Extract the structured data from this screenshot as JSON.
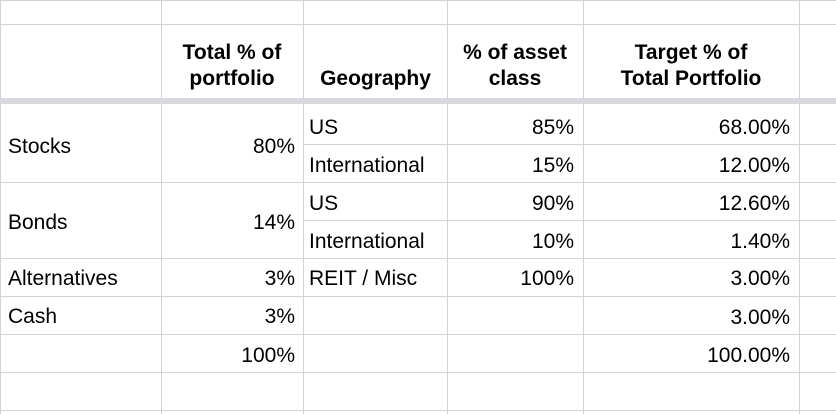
{
  "header": {
    "total_pct": [
      "Total % of",
      "portfolio"
    ],
    "geography": "Geography",
    "pct_asset_class": [
      "% of asset",
      "class"
    ],
    "target_pct": [
      "Target % of",
      "Total Portfolio"
    ]
  },
  "rows": {
    "stocks": {
      "label": "Stocks",
      "total": "80%",
      "us": {
        "geo": "US",
        "pct": "85%",
        "target": "68.00%"
      },
      "intl": {
        "geo": "International",
        "pct": "15%",
        "target": "12.00%"
      }
    },
    "bonds": {
      "label": "Bonds",
      "total": "14%",
      "us": {
        "geo": "US",
        "pct": "90%",
        "target": "12.60%"
      },
      "intl": {
        "geo": "International",
        "pct": "10%",
        "target": "1.40%"
      }
    },
    "alternatives": {
      "label": "Alternatives",
      "total": "3%",
      "geo": "REIT / Misc",
      "pct": "100%",
      "target": "3.00%"
    },
    "cash": {
      "label": "Cash",
      "total": "3%",
      "target": "3.00%"
    },
    "totals": {
      "total": "100%",
      "target": "100.00%"
    }
  }
}
